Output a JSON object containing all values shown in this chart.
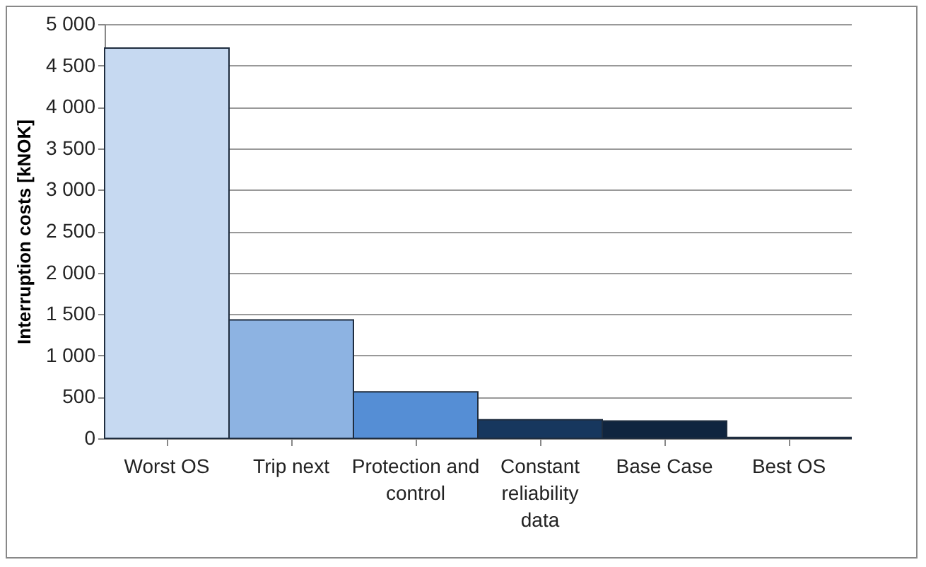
{
  "chart_data": {
    "type": "bar",
    "ylabel": "Interruption costs [kNOK]",
    "categories": [
      "Worst OS",
      "Trip next",
      "Protection and control",
      "Constant reliability data",
      "Base Case",
      "Best OS"
    ],
    "values": [
      4710,
      1430,
      560,
      225,
      210,
      10
    ],
    "colors": [
      "#c6d9f1",
      "#8db3e2",
      "#558ed5",
      "#17375e",
      "#10253f",
      "#0a1628"
    ],
    "ylim": [
      0,
      5000
    ],
    "yticks": [
      {
        "value": 0,
        "label": "0"
      },
      {
        "value": 500,
        "label": "500"
      },
      {
        "value": 1000,
        "label": "1 000"
      },
      {
        "value": 1500,
        "label": "1 500"
      },
      {
        "value": 2000,
        "label": "2 000"
      },
      {
        "value": 2500,
        "label": "2 500"
      },
      {
        "value": 3000,
        "label": "3 000"
      },
      {
        "value": 3500,
        "label": "3 500"
      },
      {
        "value": 4000,
        "label": "4 000"
      },
      {
        "value": 4500,
        "label": "4 500"
      },
      {
        "value": 5000,
        "label": "5 000"
      }
    ],
    "grid": "y",
    "legend": false
  }
}
